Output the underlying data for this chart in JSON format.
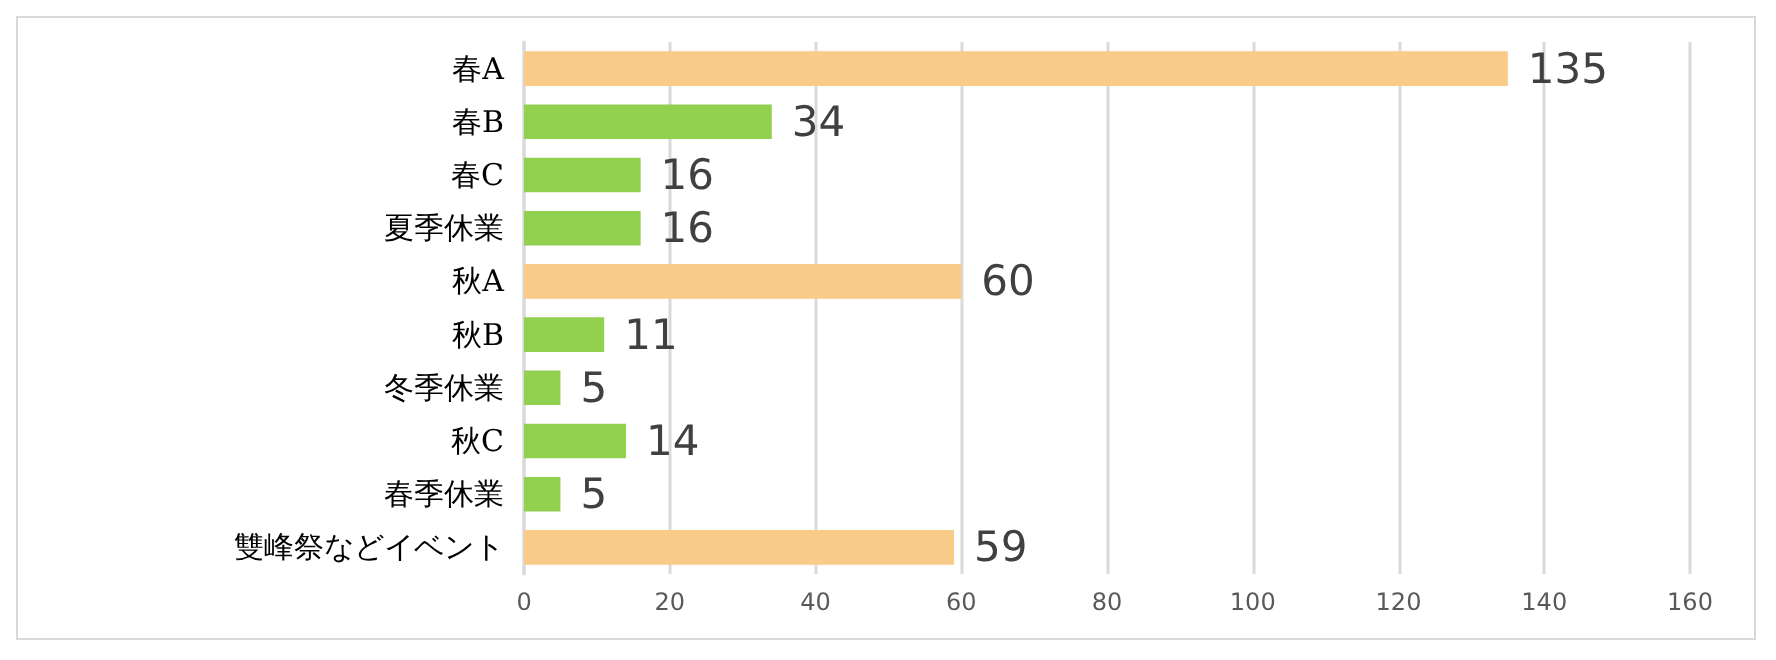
{
  "chart_data": {
    "type": "bar",
    "orientation": "horizontal",
    "categories": [
      "春A",
      "春B",
      "春C",
      "夏季休業",
      "秋A",
      "秋B",
      "冬季休業",
      "秋C",
      "春季休業",
      "雙峰祭などイベント"
    ],
    "values": [
      135,
      34,
      16,
      16,
      60,
      11,
      5,
      14,
      5,
      59
    ],
    "colors": [
      "#f8cb88",
      "#92d050",
      "#92d050",
      "#92d050",
      "#f8cb88",
      "#92d050",
      "#92d050",
      "#92d050",
      "#92d050",
      "#f8cb88"
    ],
    "xlim": [
      0,
      160
    ],
    "xticks": [
      0,
      20,
      40,
      60,
      80,
      100,
      120,
      140,
      160
    ],
    "grid": "x",
    "data_labels": true
  }
}
